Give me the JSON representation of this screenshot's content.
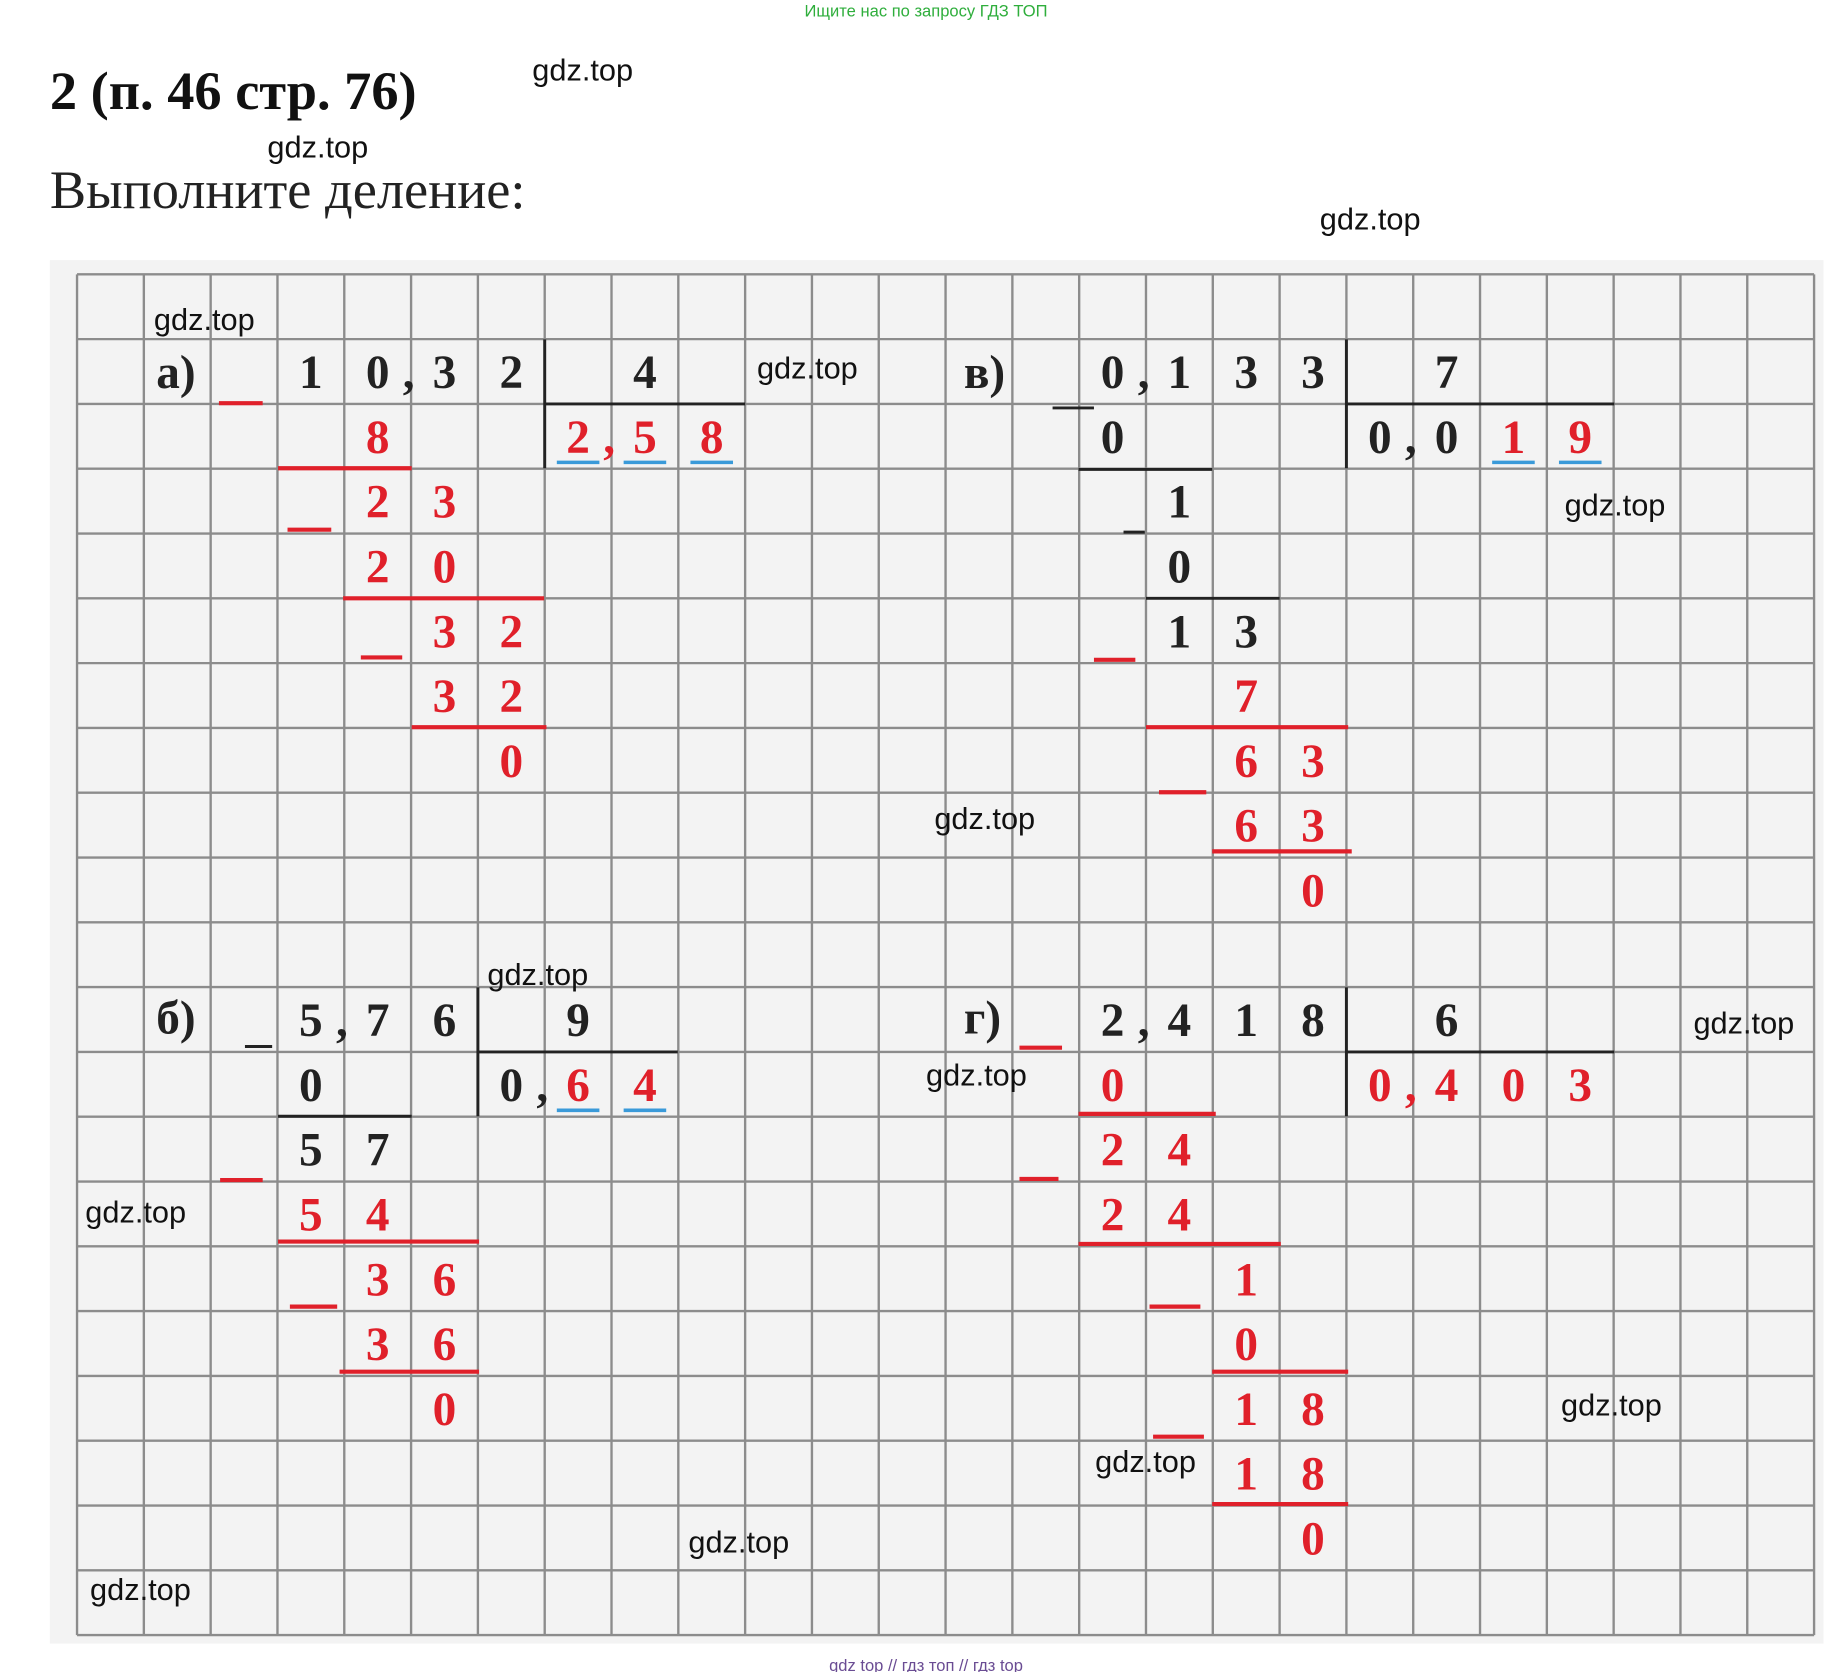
{
  "banner": "Ищите нас по запросу ГДЗ ТОП",
  "title": "2 (п. 46 стр. 76)",
  "instruction": "Выполните деление:",
  "problems": [
    {
      "label": "а)",
      "dividend": "10,32",
      "divisor": "4",
      "quotient": "2,58",
      "steps": [
        "8",
        "23",
        "20",
        "32",
        "32",
        "0"
      ]
    },
    {
      "label": "в)",
      "dividend": "0,133",
      "divisor": "7",
      "quotient_given": "0,0",
      "quotient": "19",
      "given_steps": [
        "0",
        "1",
        "0",
        "13"
      ],
      "steps": [
        "7",
        "63",
        "63",
        "0"
      ]
    },
    {
      "label": "б)",
      "dividend": "5,76",
      "divisor": "9",
      "quotient_given": "0,",
      "quotient": "64",
      "given_steps": [
        "0",
        "57"
      ],
      "steps": [
        "54",
        "36",
        "36",
        "0"
      ]
    },
    {
      "label": "г)",
      "dividend": "2,418",
      "divisor": "6",
      "quotient": "0,403",
      "steps": [
        "0",
        "24",
        "24",
        "1",
        "0",
        "18",
        "18",
        "0"
      ]
    }
  ],
  "watermarks": [
    "gdz.top",
    "gdz.top",
    "gdz.top",
    "gdz.top",
    "gdz.top",
    "gdz.top",
    "gdz.top",
    "gdz.top",
    "gdz.top",
    "gdz.top",
    "gdz.top",
    "gdz.top",
    "gdz.top",
    "gdz.top",
    "gdz.top"
  ],
  "footer": "gdz top  //  гдз топ  //  гдз top"
}
